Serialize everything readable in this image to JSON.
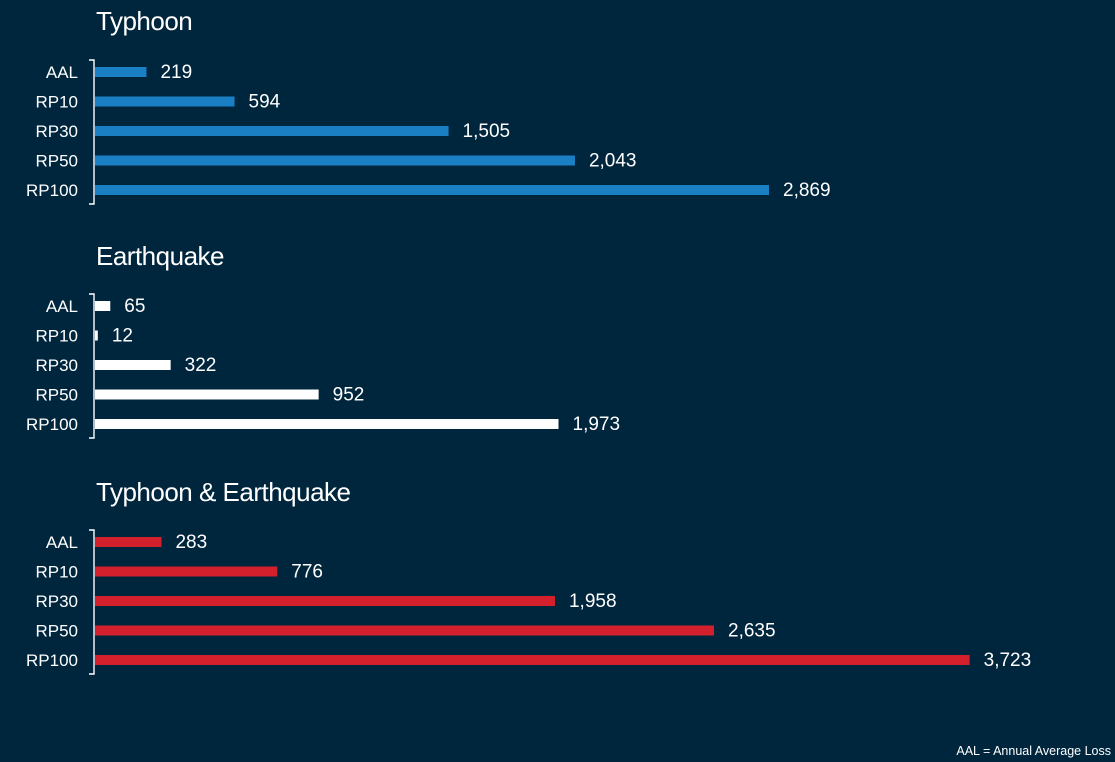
{
  "footnote": "AAL = Annual Average Loss",
  "chart_data": [
    {
      "type": "bar",
      "orientation": "horizontal",
      "title": "Typhoon",
      "color": "#1b7fc4",
      "categories": [
        "AAL",
        "RP10",
        "RP30",
        "RP50",
        "RP100"
      ],
      "values": [
        219,
        594,
        1505,
        2043,
        2869
      ],
      "value_labels": [
        "219",
        "594",
        "1,505",
        "2,043",
        "2,869"
      ]
    },
    {
      "type": "bar",
      "orientation": "horizontal",
      "title": "Earthquake",
      "color": "#ffffff",
      "categories": [
        "AAL",
        "RP10",
        "RP30",
        "RP50",
        "RP100"
      ],
      "values": [
        65,
        12,
        322,
        952,
        1973
      ],
      "value_labels": [
        "65",
        "12",
        "322",
        "952",
        "1,973"
      ]
    },
    {
      "type": "bar",
      "orientation": "horizontal",
      "title": "Typhoon & Earthquake",
      "color": "#d3202c",
      "categories": [
        "AAL",
        "RP10",
        "RP30",
        "RP50",
        "RP100"
      ],
      "values": [
        283,
        776,
        1958,
        2635,
        3723
      ],
      "value_labels": [
        "283",
        "776",
        "1,958",
        "2,635",
        "3,723"
      ]
    }
  ]
}
